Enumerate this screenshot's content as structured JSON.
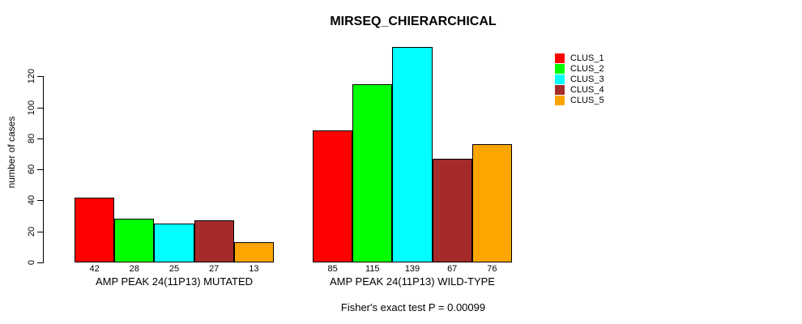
{
  "chart_data": {
    "type": "bar",
    "title": "MIRSEQ_CHIERARCHICAL",
    "ylabel": "number of cases",
    "xlabel": "",
    "categories": [
      "AMP PEAK 24(11P13) MUTATED",
      "AMP PEAK 24(11P13) WILD-TYPE"
    ],
    "series": [
      {
        "name": "CLUS_1",
        "color": "#FF0000",
        "values": [
          42,
          85
        ]
      },
      {
        "name": "CLUS_2",
        "color": "#00FF00",
        "values": [
          28,
          115
        ]
      },
      {
        "name": "CLUS_3",
        "color": "#00FFFF",
        "values": [
          25,
          139
        ]
      },
      {
        "name": "CLUS_4",
        "color": "#A52A2A",
        "values": [
          27,
          67
        ]
      },
      {
        "name": "CLUS_5",
        "color": "#FFA500",
        "values": [
          13,
          76
        ]
      }
    ],
    "value_labels": [
      [
        42,
        28,
        25,
        27,
        13
      ],
      [
        85,
        115,
        139,
        67,
        76
      ]
    ],
    "yticks": [
      0,
      20,
      40,
      60,
      80,
      100,
      120
    ],
    "ylim": [
      0,
      140
    ],
    "grid": false,
    "legend_position": "right",
    "annotation": "Fisher's exact test P = 0.00099"
  }
}
